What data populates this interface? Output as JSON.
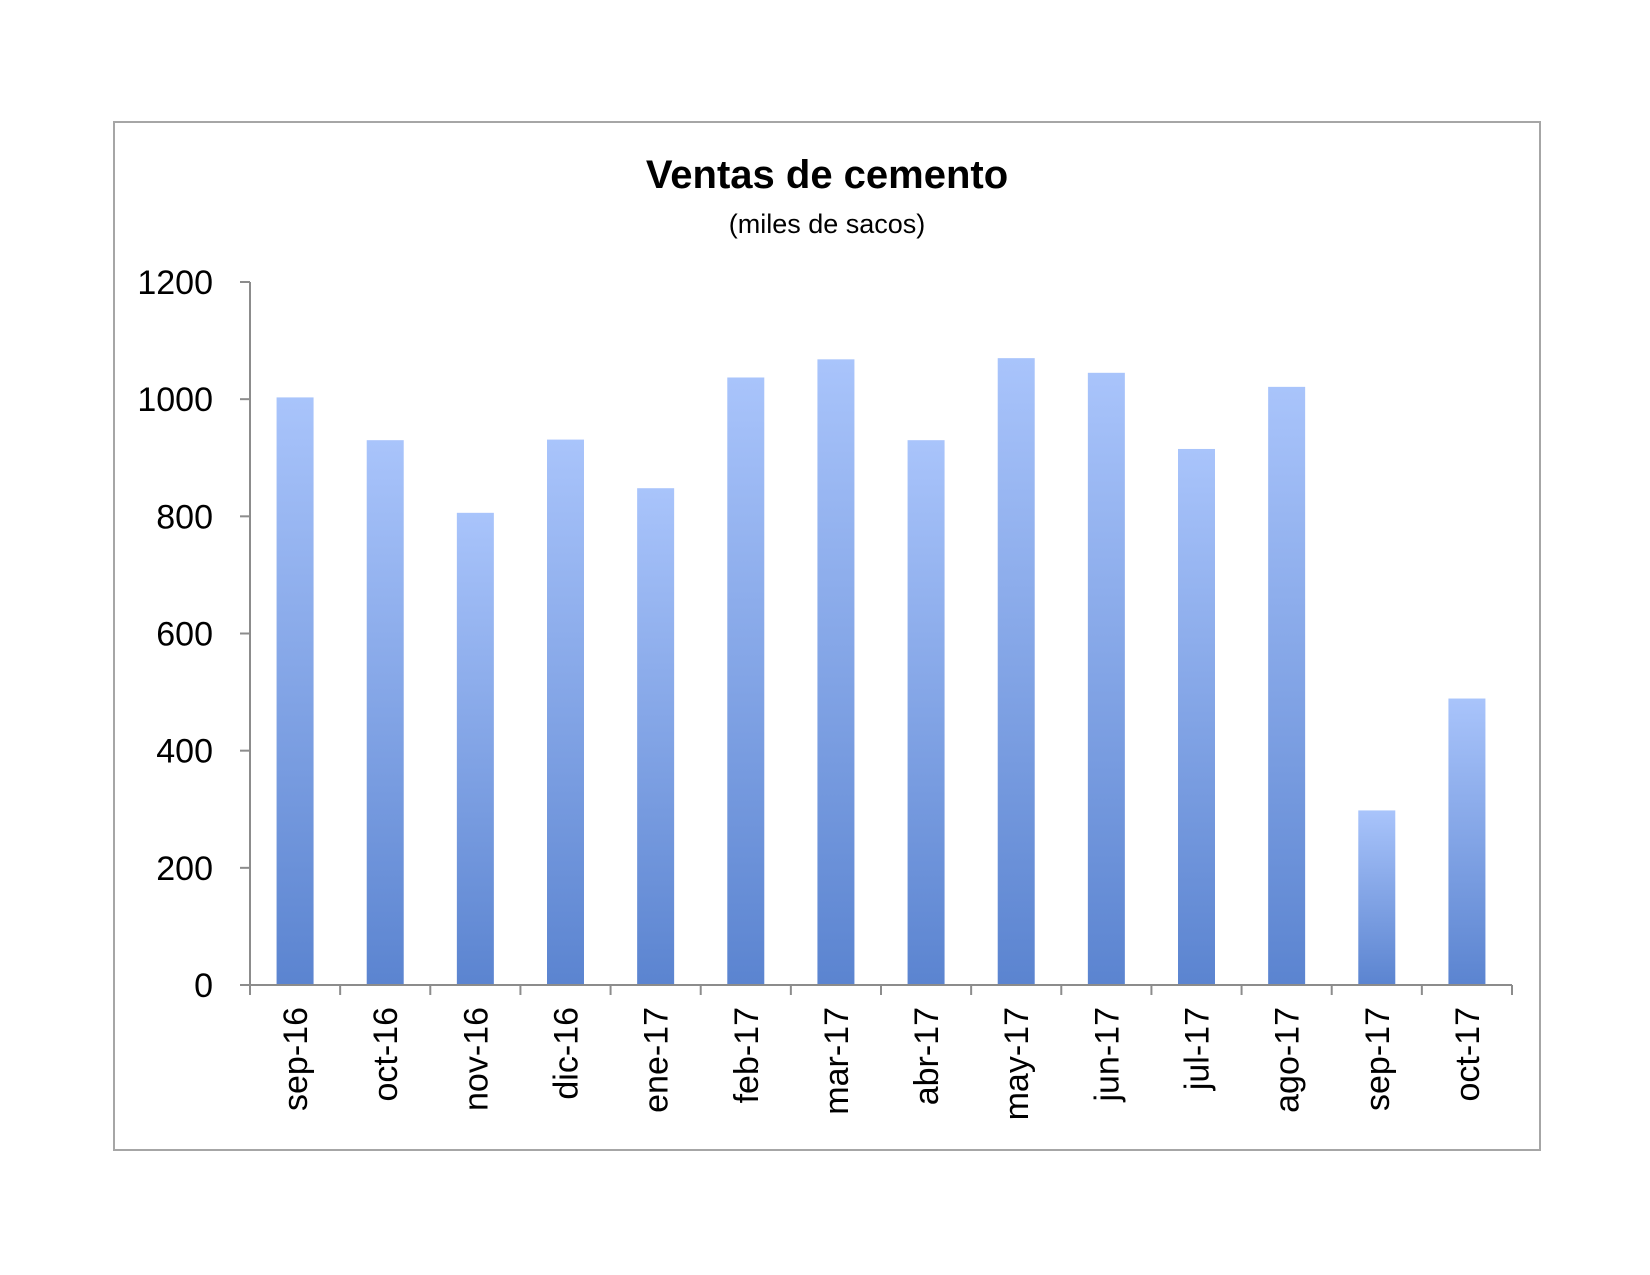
{
  "chart_data": {
    "type": "bar",
    "title": "Ventas de cemento",
    "subtitle": "(miles de sacos)",
    "xlabel": "",
    "ylabel": "",
    "categories": [
      "sep-16",
      "oct-16",
      "nov-16",
      "dic-16",
      "ene-17",
      "feb-17",
      "mar-17",
      "abr-17",
      "may-17",
      "jun-17",
      "jul-17",
      "ago-17",
      "sep-17",
      "oct-17"
    ],
    "values": [
      1003,
      930,
      806,
      931,
      848,
      1037,
      1068,
      930,
      1070,
      1045,
      915,
      1021,
      298,
      489
    ],
    "ylim": [
      0,
      1200
    ],
    "yticks": [
      0,
      200,
      400,
      600,
      800,
      1000,
      1200
    ],
    "grid": false,
    "legend": "none",
    "colors": {
      "bar_top": "#a9c4fb",
      "bar_bottom": "#5b84d0",
      "axis": "#8c8c8c",
      "frame": "#a6a6a6"
    }
  }
}
